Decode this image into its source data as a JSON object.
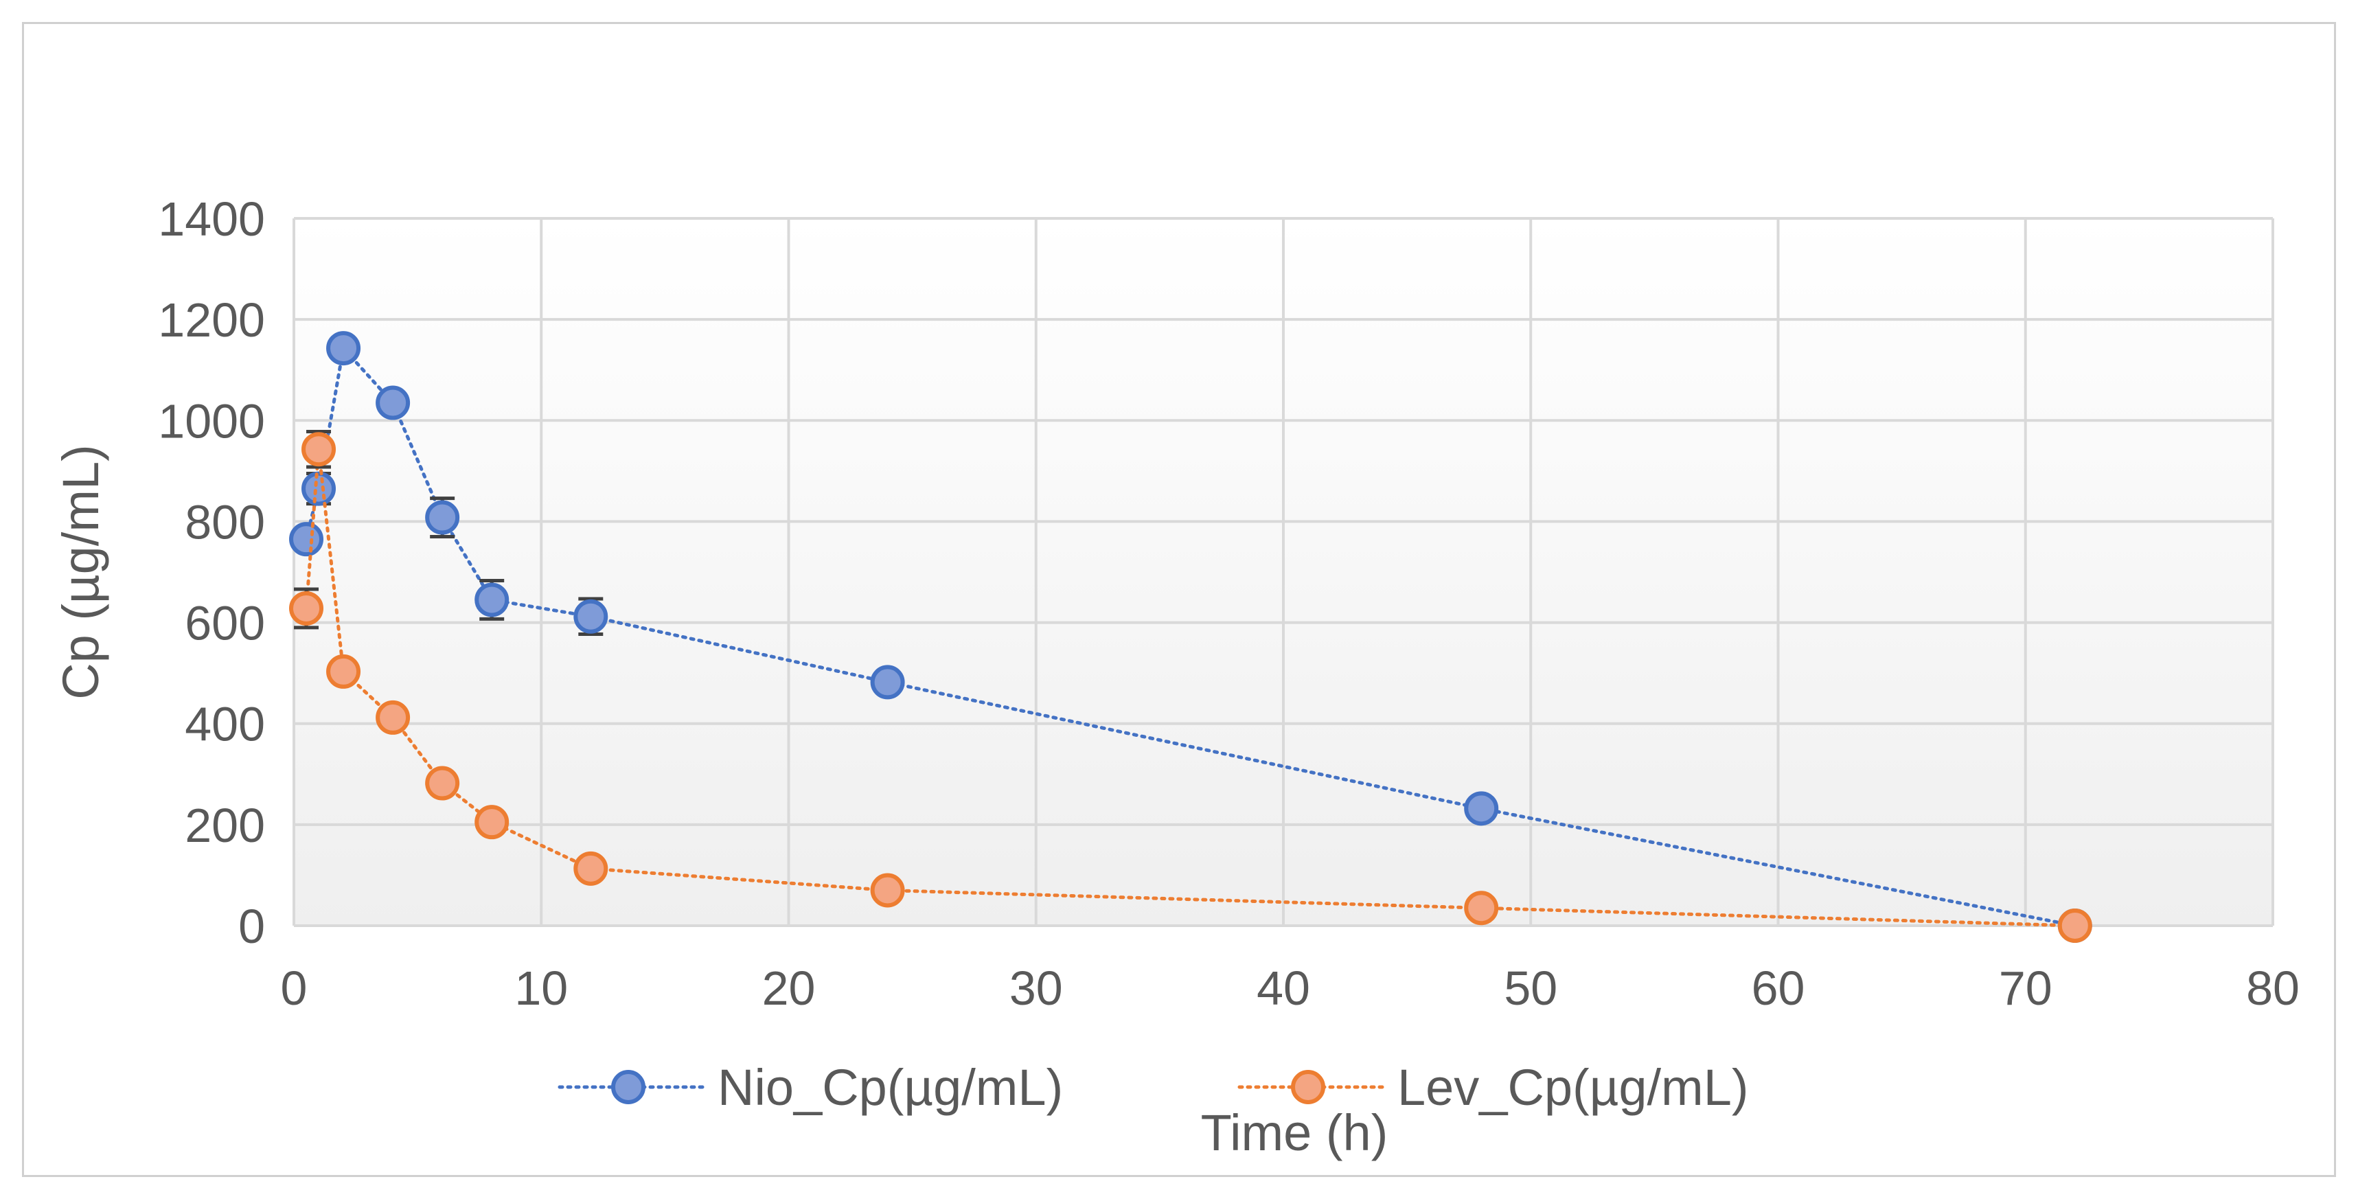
{
  "chart_data": {
    "type": "scatter",
    "title": "",
    "xlabel": "Time (h)",
    "ylabel": "Cp (µg/mL)",
    "xlim": [
      0,
      80
    ],
    "ylim": [
      0,
      1400
    ],
    "xticks": [
      0,
      10,
      20,
      30,
      40,
      50,
      60,
      70,
      80
    ],
    "yticks": [
      0,
      200,
      400,
      600,
      800,
      1000,
      1200,
      1400
    ],
    "xtick_labels": [
      "0",
      "10",
      "20",
      "30",
      "40",
      "50",
      "60",
      "70",
      "80"
    ],
    "ytick_labels": [
      "0",
      "200",
      "400",
      "600",
      "800",
      "1000",
      "1200",
      "1400"
    ],
    "grid": true,
    "legend_position": "bottom",
    "series": [
      {
        "name": "Nio_Cp(µg/mL)",
        "color": "#4472C4",
        "marker_fill": "#7F9BD8",
        "line_style": "dotted",
        "x": [
          0.5,
          1,
          2,
          4,
          6,
          8,
          12,
          24,
          48,
          72
        ],
        "y": [
          765,
          865,
          1143,
          1035,
          808,
          645,
          612,
          482,
          232,
          0
        ],
        "error": [
          0,
          30,
          0,
          0,
          38,
          38,
          35,
          0,
          0,
          0
        ]
      },
      {
        "name": "Lev_Cp(µg/mL)",
        "color": "#ED7D31",
        "marker_fill": "#F4A582",
        "line_style": "dotted",
        "x": [
          0.5,
          1,
          2,
          4,
          6,
          8,
          12,
          24,
          48,
          72
        ],
        "y": [
          628,
          943,
          503,
          412,
          282,
          205,
          113,
          70,
          35,
          0
        ],
        "error": [
          38,
          35,
          0,
          0,
          0,
          0,
          0,
          0,
          0,
          0
        ]
      }
    ]
  }
}
